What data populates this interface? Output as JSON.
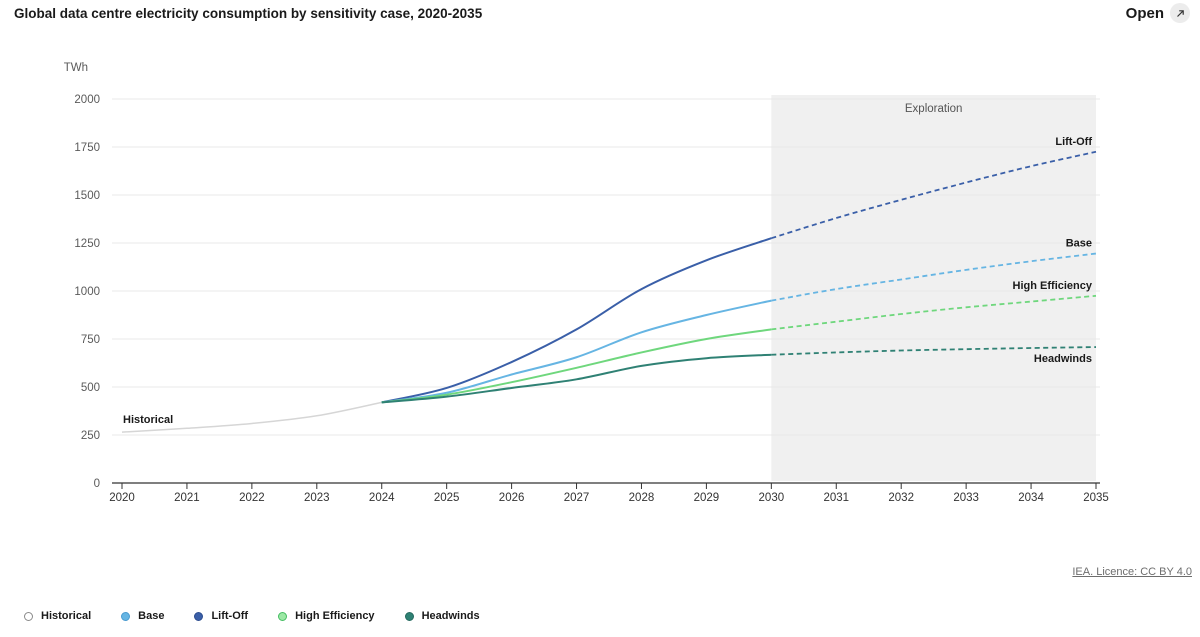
{
  "header": {
    "open_label": "Open"
  },
  "footer": {
    "licence": "IEA. Licence: CC BY 4.0"
  },
  "chart_data": {
    "type": "line",
    "title": "Global data centre electricity consumption by sensitivity case, 2020-2035",
    "ylabel": "TWh",
    "ylim": [
      0,
      2000
    ],
    "yticks": [
      0,
      250,
      500,
      750,
      1000,
      1250,
      1500,
      1750,
      2000
    ],
    "xticks": [
      2020,
      2021,
      2022,
      2023,
      2024,
      2025,
      2026,
      2027,
      2028,
      2029,
      2030,
      2031,
      2032,
      2033,
      2034,
      2035
    ],
    "grid": true,
    "exploration_band": {
      "label": "Exploration",
      "from": 2030,
      "to": 2035,
      "fill": "#f0f0f0"
    },
    "projection_dashed_from": 2030,
    "series": [
      {
        "name": "Historical",
        "color": "#d6d6d6",
        "width": 1.5,
        "x": [
          2020,
          2021,
          2022,
          2023,
          2024
        ],
        "values": [
          265,
          285,
          310,
          350,
          420
        ],
        "label": {
          "text": "Historical",
          "year": 2020,
          "dx": 1,
          "dy": -9,
          "anchor": "start"
        }
      },
      {
        "name": "Lift-Off",
        "color": "#3a5fa8",
        "width": 2,
        "x": [
          2024,
          2025,
          2026,
          2027,
          2028,
          2029,
          2030,
          2031,
          2032,
          2033,
          2034,
          2035
        ],
        "values": [
          420,
          495,
          630,
          800,
          1010,
          1160,
          1275,
          1380,
          1475,
          1565,
          1650,
          1725
        ],
        "label": {
          "text": "Lift-Off",
          "year": 2035,
          "dx": -4,
          "dy": -7,
          "anchor": "end"
        }
      },
      {
        "name": "Base",
        "color": "#66b5e3",
        "width": 2,
        "x": [
          2024,
          2025,
          2026,
          2027,
          2028,
          2029,
          2030,
          2031,
          2032,
          2033,
          2034,
          2035
        ],
        "values": [
          420,
          470,
          565,
          655,
          785,
          875,
          950,
          1010,
          1060,
          1110,
          1155,
          1195
        ],
        "label": {
          "text": "Base",
          "year": 2035,
          "dx": -4,
          "dy": -7,
          "anchor": "end"
        }
      },
      {
        "name": "High Efficiency",
        "color": "#6fd77d",
        "width": 2,
        "x": [
          2024,
          2025,
          2026,
          2027,
          2028,
          2029,
          2030,
          2031,
          2032,
          2033,
          2034,
          2035
        ],
        "values": [
          420,
          460,
          525,
          600,
          680,
          750,
          800,
          840,
          880,
          915,
          945,
          975
        ],
        "label": {
          "text": "High Efficiency",
          "year": 2035,
          "dx": -4,
          "dy": -7,
          "anchor": "end"
        }
      },
      {
        "name": "Headwinds",
        "color": "#2f8174",
        "width": 2,
        "x": [
          2024,
          2025,
          2026,
          2027,
          2028,
          2029,
          2030,
          2031,
          2032,
          2033,
          2034,
          2035
        ],
        "values": [
          420,
          450,
          495,
          540,
          610,
          650,
          668,
          680,
          690,
          697,
          703,
          708
        ],
        "label": {
          "text": "Headwinds",
          "year": 2035,
          "dx": -4,
          "dy": 15,
          "anchor": "end"
        }
      }
    ],
    "legend_position": "bottom-left"
  },
  "legend": {
    "items": [
      {
        "label": "Historical",
        "fill": "#ffffff",
        "border": "#8a8a8a"
      },
      {
        "label": "Base",
        "fill": "#66b5e3",
        "border": "#4a9bd0"
      },
      {
        "label": "Lift-Off",
        "fill": "#3a5fa8",
        "border": "#2d4d8f"
      },
      {
        "label": "High Efficiency",
        "fill": "#9ce8a5",
        "border": "#45bd62"
      },
      {
        "label": "Headwinds",
        "fill": "#2f8174",
        "border": "#266a5f"
      }
    ]
  },
  "style": {
    "grid_color": "#e8e8e8",
    "axis_color": "#333333",
    "ytick_color": "#5a5a5a",
    "xtick_color": "#333333",
    "annotation_color": "#555555",
    "series_label_color": "#1a1a1a"
  }
}
